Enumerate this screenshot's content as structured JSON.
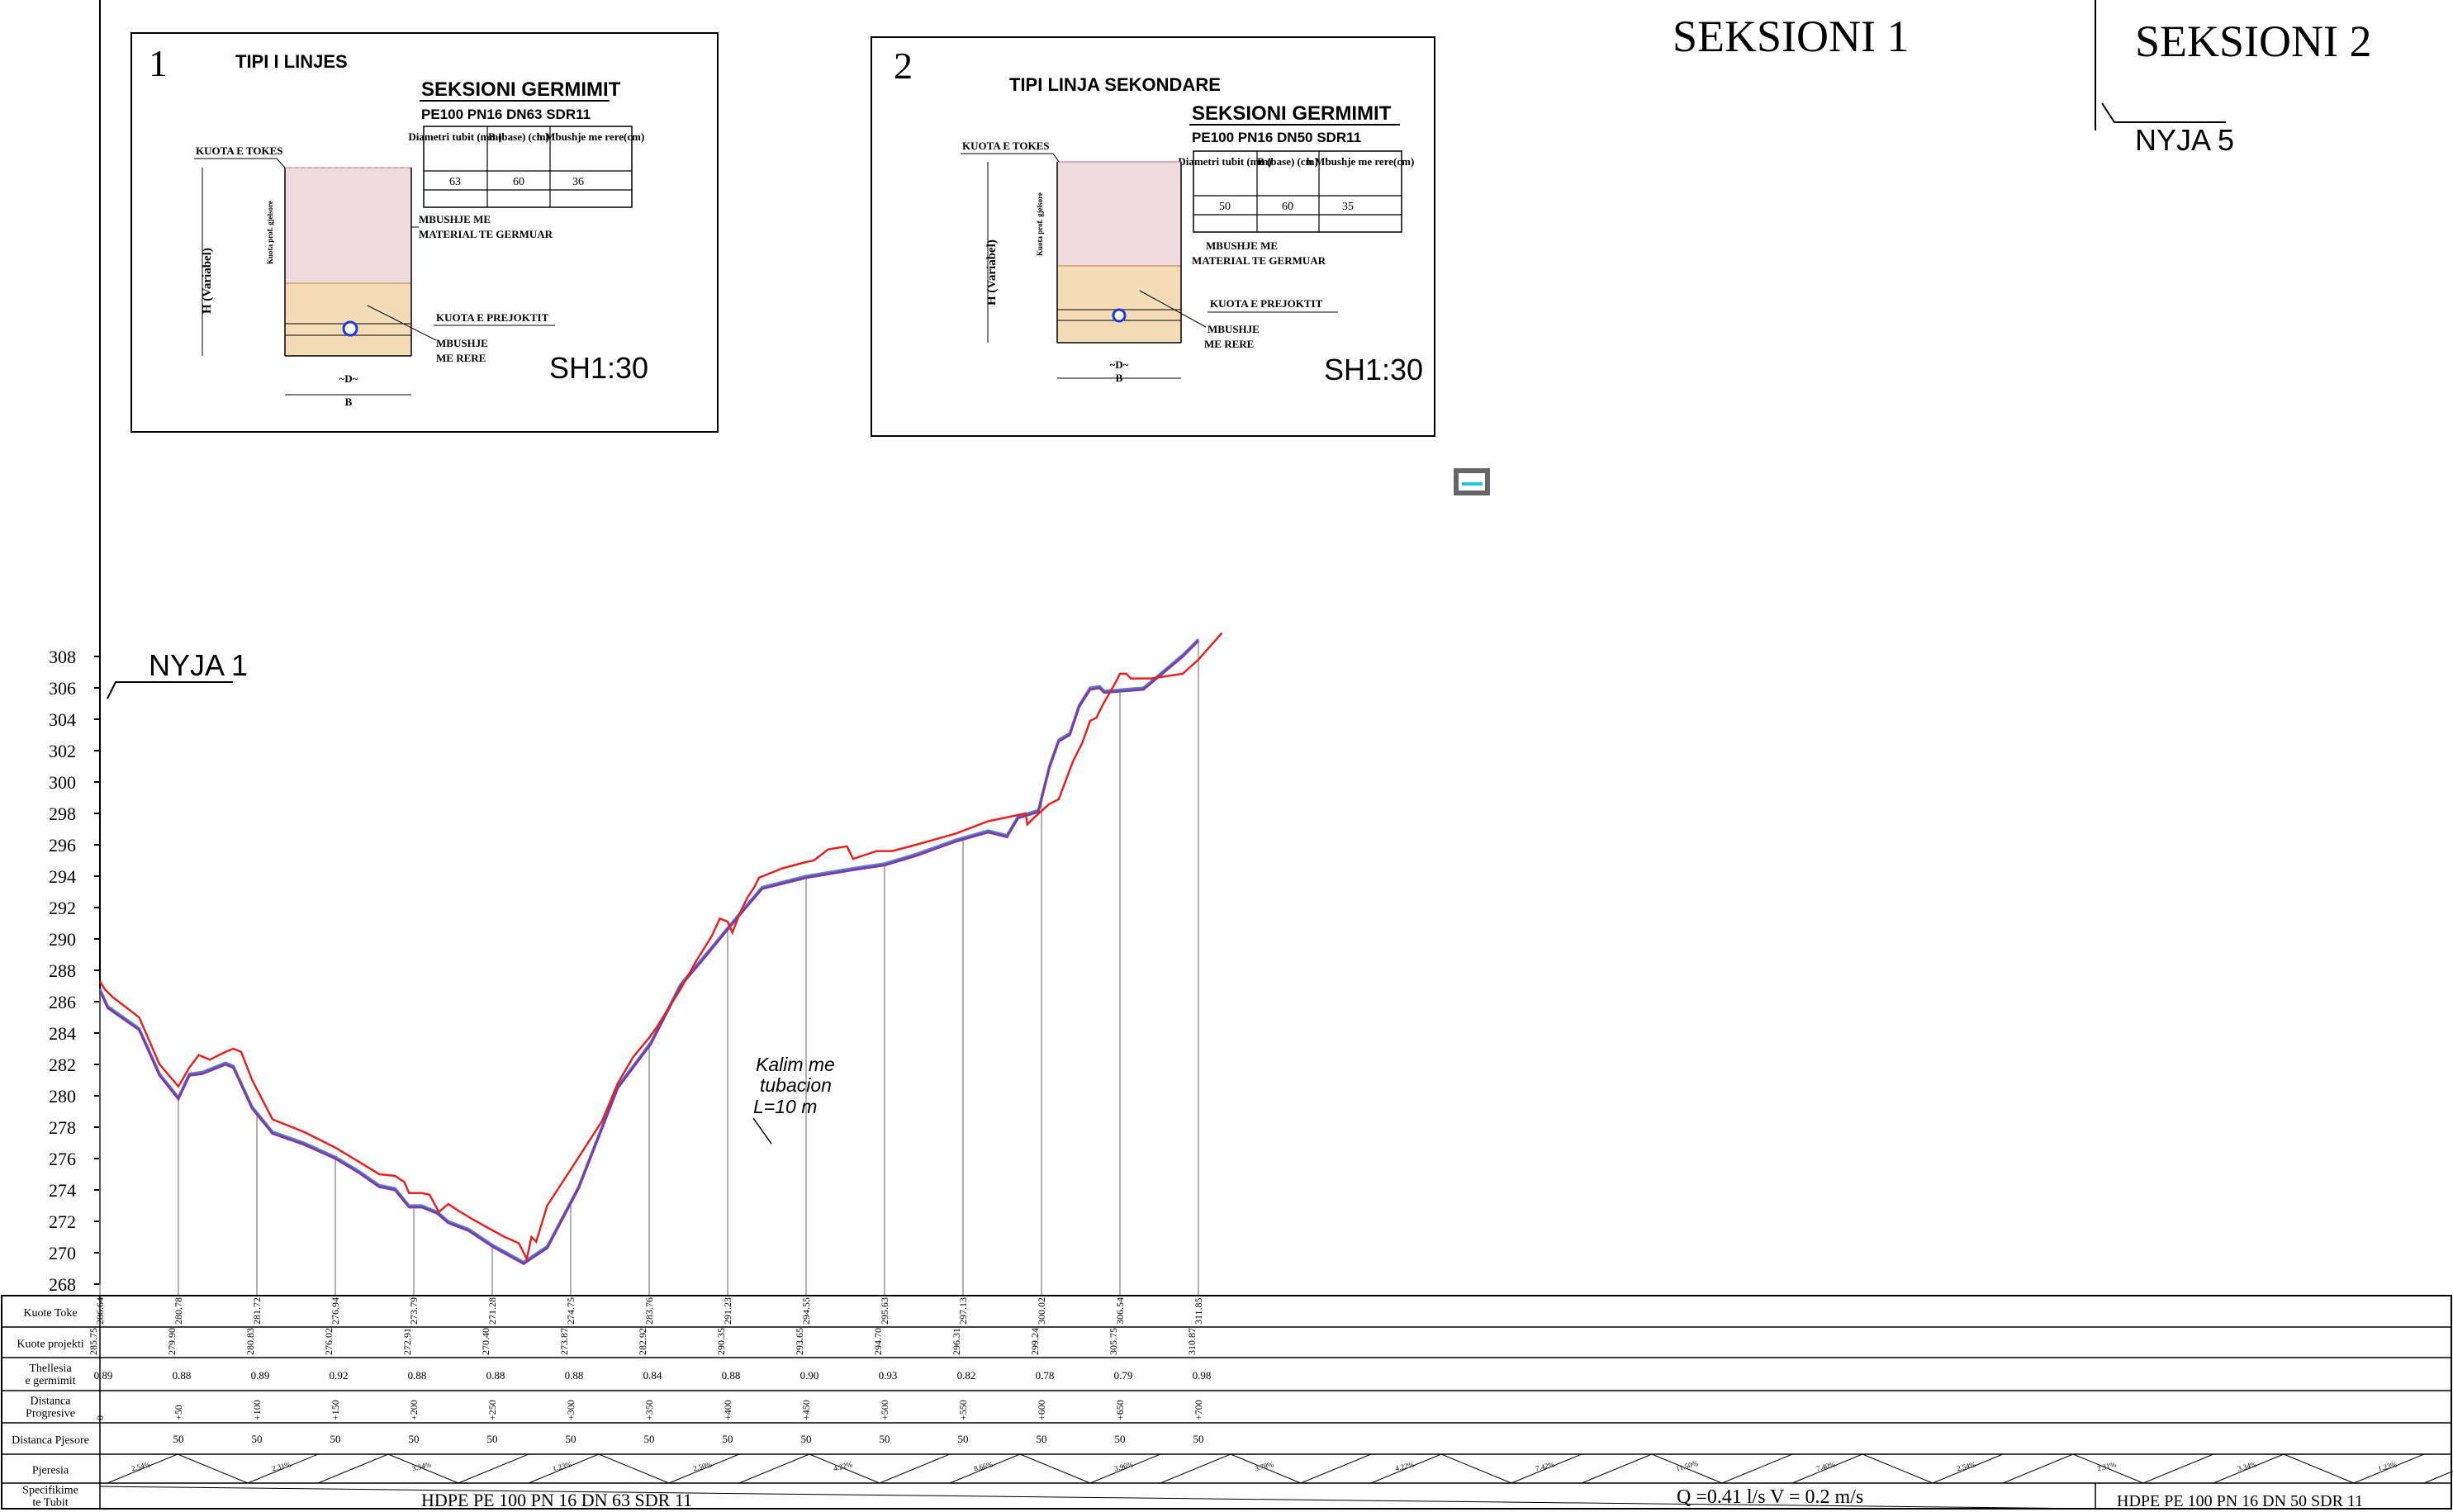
{
  "sections": {
    "s1": "SEKSIONI 1",
    "s2": "SEKSIONI 2"
  },
  "nodes": {
    "n1": "NYJA 1",
    "n5": "NYJA 5"
  },
  "crossing_note": [
    "Kalim me",
    "tubacion",
    "L=10 m"
  ],
  "y_axis_labels": [
    "268",
    "270",
    "272",
    "274",
    "276",
    "278",
    "280",
    "282",
    "284",
    "286",
    "288",
    "290",
    "292",
    "294",
    "296",
    "298",
    "300",
    "302",
    "304",
    "306",
    "308"
  ],
  "detail1": {
    "number": "1",
    "title": "TIPI I LINJES",
    "excav_title": "SEKSIONI GERMIMIT",
    "pipe_spec": "PE100 PN16 DN63 SDR11",
    "table_headers": [
      "Diametri tubit (mm)",
      "B (base) (cm)",
      "h Mbushje me rere(cm)"
    ],
    "table_values": [
      "63",
      "60",
      "36"
    ],
    "label_kuota_tokes": "KUOTA E TOKES",
    "label_h": "H (Variabel)",
    "label_fill1": "MBUSHJE ME",
    "label_fill2": "MATERIAL TE GERMUAR",
    "label_kuota_proj": "KUOTA E PREJOKTIT",
    "label_sand1": "MBUSHJE",
    "label_sand2": "ME RERE",
    "label_d": "~D~",
    "label_b": "B",
    "label_side": "Kuota prof. gjelsore",
    "scale": "SH1:30"
  },
  "detail2": {
    "number": "2",
    "title": "TIPI LINJA SEKONDARE",
    "excav_title": "SEKSIONI GERMIMIT",
    "pipe_spec": "PE100 PN16 DN50 SDR11",
    "table_headers": [
      "Diametri tubit (mm)",
      "B (base) (cm)",
      "h Mbushje me rere(cm)"
    ],
    "table_values": [
      "50",
      "60",
      "35"
    ],
    "label_kuota_tokes": "KUOTA E TOKES",
    "label_h": "H (Variabel)",
    "label_fill1": "MBUSHJE ME",
    "label_fill2": "MATERIAL TE GERMUAR",
    "label_kuota_proj": "KUOTA E PREJOKTIT",
    "label_sand1": "MBUSHJE",
    "label_sand2": "ME RERE",
    "label_d": "~D~",
    "label_b": "B",
    "label_side": "Kuota prof. gjelsore",
    "scale": "SH1:30"
  },
  "table_rows": [
    "Kuote Toke",
    "Kuote projekti",
    "Thellesia e germimit",
    "Distanca Progresive",
    "Distanca Pjesore",
    "Pjeresia",
    "Specifikime te Tubit"
  ],
  "stations": [
    {
      "prog": "0",
      "toke": "286.64",
      "proj": "285.75",
      "depth": "0.89",
      "partial": ""
    },
    {
      "prog": "+50",
      "toke": "280.78",
      "proj": "279.90",
      "depth": "0.88",
      "partial": "50"
    },
    {
      "prog": "+100",
      "toke": "281.72",
      "proj": "280.83",
      "depth": "0.89",
      "partial": "50"
    },
    {
      "prog": "+150",
      "toke": "276.94",
      "proj": "276.02",
      "depth": "0.92",
      "partial": "50"
    },
    {
      "prog": "+200",
      "toke": "273.79",
      "proj": "272.91",
      "depth": "0.88",
      "partial": "50"
    },
    {
      "prog": "+250",
      "toke": "271.28",
      "proj": "270.40",
      "depth": "0.88",
      "partial": "50"
    },
    {
      "prog": "+300",
      "toke": "274.75",
      "proj": "273.87",
      "depth": "0.88",
      "partial": "50"
    },
    {
      "prog": "+350",
      "toke": "283.76",
      "proj": "282.92",
      "depth": "0.84",
      "partial": "50"
    },
    {
      "prog": "+400",
      "toke": "291.23",
      "proj": "290.35",
      "depth": "0.88",
      "partial": "50"
    },
    {
      "prog": "+450",
      "toke": "294.55",
      "proj": "293.65",
      "depth": "0.90",
      "partial": "50"
    },
    {
      "prog": "+500",
      "toke": "295.63",
      "proj": "294.70",
      "depth": "0.93",
      "partial": "50"
    },
    {
      "prog": "+550",
      "toke": "297.13",
      "proj": "296.31",
      "depth": "0.82",
      "partial": "50"
    },
    {
      "prog": "+600",
      "toke": "300.02",
      "proj": "299.24",
      "depth": "0.78",
      "partial": "50"
    },
    {
      "prog": "+650",
      "toke": "306.54",
      "proj": "305.75",
      "depth": "0.79",
      "partial": "50"
    },
    {
      "prog": "+700",
      "toke": "311.85",
      "proj": "310.87",
      "depth": "0.98",
      "partial": "50"
    }
  ],
  "slopes": [
    "2.54%",
    "2.31%",
    "3.34%",
    "1.23%",
    "2.50%",
    "4.22%",
    "8.66%",
    "3.96%",
    "3.78%",
    "4.22%",
    "7.42%",
    "11.50%",
    "7.40%"
  ],
  "pipe_spec_1": "HDPE PE 100 PN 16 DN 63 SDR 11",
  "flow": "Q =0.41 l/s    V = 0.2 m/s",
  "pipe_spec_2": "HDPE PE 100 PN 16 DN 50 SDR 11",
  "profile": {
    "ground": [
      [
        0,
        287.3
      ],
      [
        3,
        286.8
      ],
      [
        8,
        286.3
      ],
      [
        25,
        285
      ],
      [
        38,
        282
      ],
      [
        50,
        280.6
      ],
      [
        57,
        281.8
      ],
      [
        63,
        282.6
      ],
      [
        70,
        282.3
      ],
      [
        80,
        282.8
      ],
      [
        85,
        283
      ],
      [
        90,
        282.8
      ],
      [
        97,
        281
      ],
      [
        110,
        278.5
      ],
      [
        130,
        277.7
      ],
      [
        150,
        276.7
      ],
      [
        165,
        275.8
      ],
      [
        178,
        275
      ],
      [
        188,
        274.9
      ],
      [
        194,
        274.5
      ],
      [
        197,
        273.8
      ],
      [
        205,
        273.8
      ],
      [
        210,
        273.7
      ],
      [
        216,
        272.6
      ],
      [
        222,
        273.1
      ],
      [
        228,
        272.7
      ],
      [
        238,
        272.1
      ],
      [
        247,
        271.6
      ],
      [
        258,
        271
      ],
      [
        267,
        270.6
      ],
      [
        272,
        269.6
      ],
      [
        275,
        271
      ],
      [
        278,
        270.7
      ],
      [
        285,
        273
      ],
      [
        300,
        275.3
      ],
      [
        320,
        278.4
      ],
      [
        330,
        280.8
      ],
      [
        340,
        282.5
      ],
      [
        345,
        283.1
      ],
      [
        350,
        283.7
      ],
      [
        355,
        284.4
      ],
      [
        360,
        285.2
      ],
      [
        370,
        286.8
      ],
      [
        380,
        288.6
      ],
      [
        390,
        290.2
      ],
      [
        395,
        291.3
      ],
      [
        400,
        291.1
      ],
      [
        403,
        290.4
      ],
      [
        408,
        291.7
      ],
      [
        413,
        292.7
      ],
      [
        417,
        293.3
      ],
      [
        420,
        293.9
      ],
      [
        435,
        294.5
      ],
      [
        450,
        294.9
      ],
      [
        455,
        295
      ],
      [
        464,
        295.7
      ],
      [
        470,
        295.8
      ],
      [
        476,
        295.9
      ],
      [
        480,
        295.1
      ],
      [
        495,
        295.6
      ],
      [
        505,
        295.6
      ],
      [
        520,
        296
      ],
      [
        545,
        296.7
      ],
      [
        566,
        297.5
      ],
      [
        590,
        298
      ],
      [
        591,
        297.3
      ],
      [
        595,
        297.7
      ],
      [
        605,
        298.6
      ],
      [
        611,
        298.9
      ],
      [
        620,
        301.3
      ],
      [
        626,
        302.5
      ],
      [
        631,
        303.9
      ],
      [
        635,
        304.1
      ],
      [
        640,
        305.1
      ],
      [
        647,
        306.3
      ],
      [
        650,
        306.9
      ],
      [
        654,
        306.9
      ],
      [
        657,
        306.6
      ],
      [
        670,
        306.6
      ],
      [
        690,
        306.9
      ],
      [
        700,
        307.8
      ],
      [
        715,
        309.5
      ]
    ],
    "pipe": [
      [
        0,
        286.7
      ],
      [
        5,
        285.6
      ],
      [
        25,
        284.2
      ],
      [
        38,
        281.3
      ],
      [
        50,
        279.8
      ],
      [
        57,
        281.3
      ],
      [
        65,
        281.4
      ],
      [
        80,
        282
      ],
      [
        85,
        281.8
      ],
      [
        97,
        279.2
      ],
      [
        110,
        277.6
      ],
      [
        130,
        276.9
      ],
      [
        150,
        276
      ],
      [
        165,
        275.1
      ],
      [
        178,
        274.2
      ],
      [
        188,
        274
      ],
      [
        197,
        272.9
      ],
      [
        205,
        272.9
      ],
      [
        215,
        272.5
      ],
      [
        222,
        271.9
      ],
      [
        235,
        271.4
      ],
      [
        250,
        270.4
      ],
      [
        270,
        269.3
      ],
      [
        285,
        270.3
      ],
      [
        305,
        274.1
      ],
      [
        330,
        280.5
      ],
      [
        351,
        283.3
      ],
      [
        370,
        287
      ],
      [
        386,
        288.9
      ],
      [
        400,
        290.6
      ],
      [
        410,
        291.8
      ],
      [
        422,
        293.2
      ],
      [
        450,
        293.9
      ],
      [
        480,
        294.4
      ],
      [
        500,
        294.7
      ],
      [
        520,
        295.3
      ],
      [
        545,
        296.2
      ],
      [
        566,
        296.8
      ],
      [
        578,
        296.5
      ],
      [
        585,
        297.7
      ],
      [
        598,
        298.1
      ],
      [
        605,
        300.9
      ],
      [
        611,
        302.6
      ],
      [
        618,
        303
      ],
      [
        624,
        304.8
      ],
      [
        631,
        305.9
      ],
      [
        637,
        306
      ],
      [
        640,
        305.7
      ],
      [
        665,
        305.9
      ],
      [
        690,
        308
      ],
      [
        700,
        309
      ]
    ]
  }
}
